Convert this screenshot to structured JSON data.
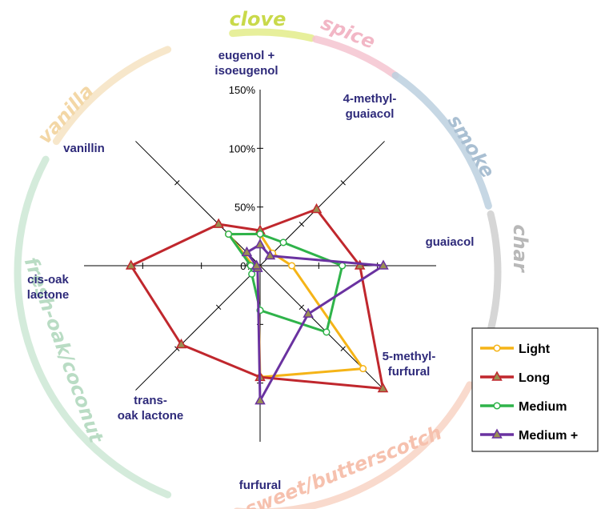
{
  "chart_data": {
    "type": "radar",
    "axes": [
      "eugenol + isoeugenol",
      "4-methyl-guaiacol",
      "guaiacol",
      "5-methyl-furfural",
      "furfural",
      "trans-oak lactone",
      "cis-oak lactone",
      "vanillin"
    ],
    "axis_label_lines": [
      [
        "eugenol +",
        "isoeugenol"
      ],
      [
        "4-methyl-",
        "guaiacol"
      ],
      [
        "guaiacol"
      ],
      [
        "5-methyl-",
        "furfural"
      ],
      [
        "furfural"
      ],
      [
        "trans-",
        "oak lactone"
      ],
      [
        "cis-oak",
        "lactone"
      ],
      [
        "vanillin"
      ]
    ],
    "rlim": [
      0,
      150
    ],
    "ticks": [
      "0%",
      "50%",
      "100%",
      "150%"
    ],
    "tick_values": [
      0,
      50,
      100,
      150
    ],
    "series": [
      {
        "name": "Light",
        "color": "#f5b417",
        "marker": "circle",
        "values": [
          27,
          15,
          27,
          124,
          95,
          3,
          6,
          38
        ]
      },
      {
        "name": "Long",
        "color": "#c0272d",
        "marker": "triangle",
        "values": [
          30,
          68,
          85,
          148,
          95,
          95,
          110,
          50
        ]
      },
      {
        "name": "Medium",
        "color": "#2fb34a",
        "marker": "circle",
        "values": [
          27,
          28,
          70,
          80,
          38,
          10,
          8,
          38
        ]
      },
      {
        "name": "Medium +",
        "color": "#6a32a0",
        "marker": "triangle",
        "values": [
          18,
          12,
          105,
          58,
          115,
          3,
          3,
          16
        ]
      }
    ],
    "flavor_labels": [
      {
        "text": "clove",
        "color": "#c9d94a",
        "band": "#e3ec8a"
      },
      {
        "text": "spice",
        "color": "#f2b7c6",
        "band": "#f4c4d0"
      },
      {
        "text": "smoke",
        "color": "#a9bfd2",
        "band": "#bcd0df"
      },
      {
        "text": "char",
        "color": "#b8b8b8",
        "band": "#cfcfcf"
      },
      {
        "text": "sweet/butterscotch",
        "color": "#f6c1ae",
        "band": "#f8d3c4"
      },
      {
        "text": "fresh-oak/coconut",
        "color": "#b9dcc4",
        "band": "#cce8d5"
      },
      {
        "text": "vanilla",
        "color": "#f3d7a6",
        "band": "#f6e3c2"
      }
    ],
    "legend_position": "bottom-right"
  }
}
